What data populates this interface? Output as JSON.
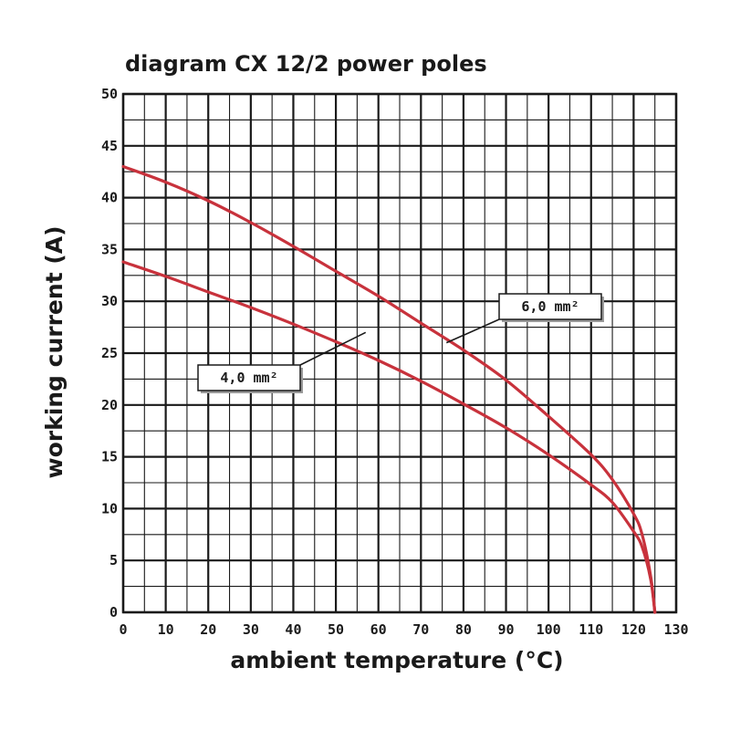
{
  "chart_data": {
    "type": "line",
    "title": "diagram CX 12/2 power poles",
    "xlabel": "ambient temperature (°C)",
    "ylabel": "working current (A)",
    "xlim": [
      0,
      130
    ],
    "ylim": [
      0,
      50
    ],
    "x_ticks": [
      "0",
      "10",
      "20",
      "30",
      "40",
      "50",
      "60",
      "70",
      "80",
      "90",
      "100",
      "110",
      "120",
      "130"
    ],
    "y_ticks": [
      "0",
      "5",
      "10",
      "15",
      "20",
      "25",
      "30",
      "35",
      "40",
      "45",
      "50"
    ],
    "grid": true,
    "series": [
      {
        "name": "6,0 mm²",
        "color": "#c8323c",
        "points": [
          [
            0,
            43.0
          ],
          [
            10,
            41.5
          ],
          [
            20,
            39.7
          ],
          [
            30,
            37.6
          ],
          [
            40,
            35.3
          ],
          [
            50,
            32.9
          ],
          [
            60,
            30.5
          ],
          [
            70,
            27.9
          ],
          [
            80,
            25.3
          ],
          [
            90,
            22.4
          ],
          [
            100,
            18.9
          ],
          [
            110,
            15.2
          ],
          [
            115,
            12.8
          ],
          [
            120,
            9.5
          ],
          [
            122,
            7.5
          ],
          [
            124,
            3.5
          ],
          [
            125,
            0
          ]
        ]
      },
      {
        "name": "4,0 mm²",
        "color": "#c8323c",
        "points": [
          [
            0,
            33.8
          ],
          [
            10,
            32.4
          ],
          [
            20,
            30.9
          ],
          [
            30,
            29.4
          ],
          [
            40,
            27.8
          ],
          [
            50,
            26.1
          ],
          [
            60,
            24.3
          ],
          [
            70,
            22.3
          ],
          [
            80,
            20.1
          ],
          [
            90,
            17.8
          ],
          [
            100,
            15.2
          ],
          [
            110,
            12.3
          ],
          [
            115,
            10.6
          ],
          [
            120,
            7.8
          ],
          [
            122,
            6.3
          ],
          [
            124,
            3.2
          ],
          [
            125,
            0
          ]
        ]
      }
    ],
    "annotations": [
      {
        "text": "6,0 mm²",
        "anchor": [
          76,
          26
        ]
      },
      {
        "text": "4,0 mm²",
        "anchor": [
          57,
          27
        ]
      }
    ]
  }
}
